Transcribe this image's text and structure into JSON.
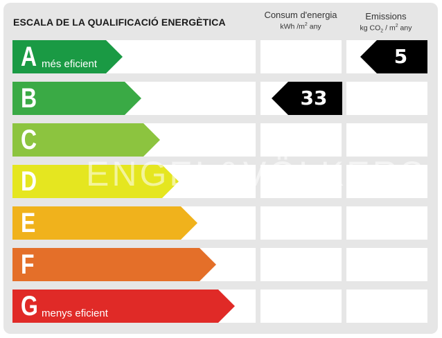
{
  "header": {
    "title": "ESCALA DE LA QUALIFICACIÓ ENERGÈTICA",
    "consumption": {
      "label": "Consum d'energia",
      "unit_prefix": "kWh /m",
      "unit_sup": "2",
      "unit_suffix": " any"
    },
    "emissions": {
      "label": "Emissions",
      "unit_prefix": "kg CO",
      "unit_sub": "2",
      "unit_mid": " / m",
      "unit_sup": "2",
      "unit_suffix": " any"
    }
  },
  "ratings": [
    {
      "letter": "A",
      "caption": "més eficient",
      "color": "#1a9a44"
    },
    {
      "letter": "B",
      "caption": "",
      "color": "#3aaa45"
    },
    {
      "letter": "C",
      "caption": "",
      "color": "#8cc43f"
    },
    {
      "letter": "D",
      "caption": "",
      "color": "#e5e620"
    },
    {
      "letter": "E",
      "caption": "",
      "color": "#f0b21c"
    },
    {
      "letter": "F",
      "caption": "",
      "color": "#e46f29"
    },
    {
      "letter": "G",
      "caption": "menys eficient",
      "color": "#e02a27"
    }
  ],
  "values": {
    "consumption": {
      "value": "33",
      "rating": "B"
    },
    "emissions": {
      "value": "5",
      "rating": "A"
    }
  },
  "watermark": "ENGEL&VÖLKERS"
}
